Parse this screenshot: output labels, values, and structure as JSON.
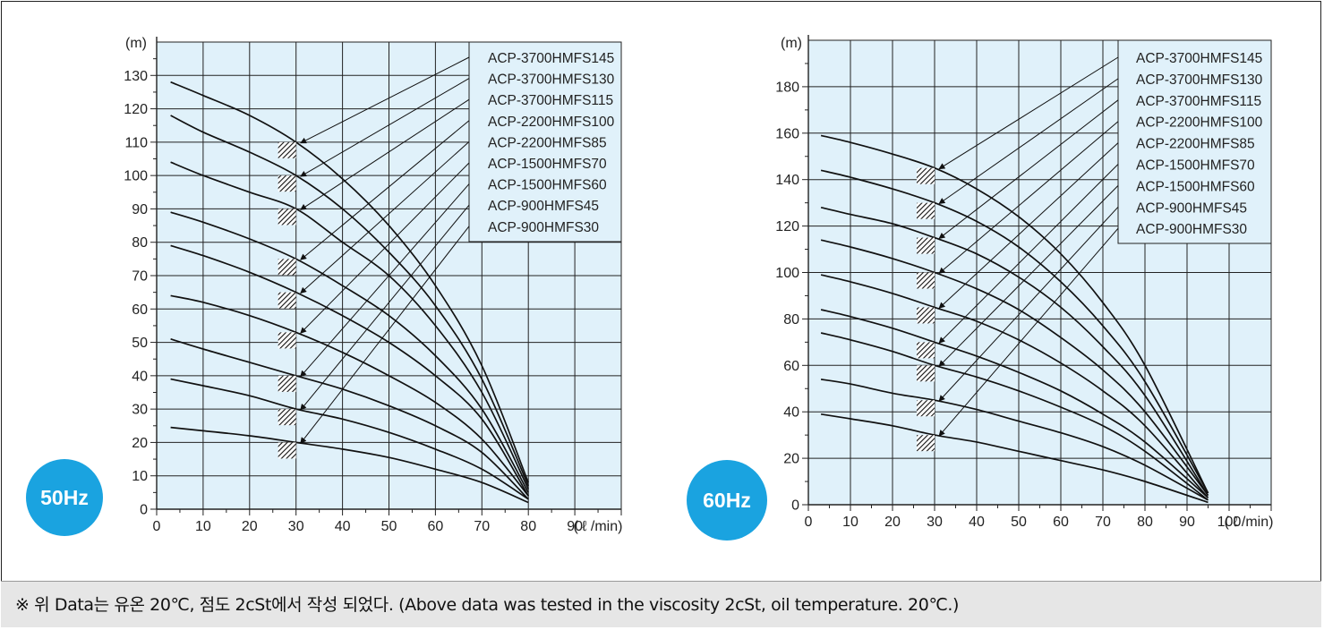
{
  "note": "※ 위 Data는 유온 20℃, 점도 2cSt에서 작성 되었다. (Above data was tested in the viscosity 2cSt, oil temperature. 20℃.)",
  "colors": {
    "plot_bg": "#e0f1fa",
    "badge": "#1aa3e0",
    "grid": "#222222",
    "curve": "#111111"
  },
  "chart_data": [
    {
      "type": "line",
      "badge": "50Hz",
      "ylabel": "(m)",
      "xlabel": "( ℓ /min)",
      "xlim": [
        0,
        100
      ],
      "ylim": [
        0,
        140
      ],
      "x_ticks": [
        "0",
        "10",
        "20",
        "30",
        "40",
        "50",
        "60",
        "70",
        "80",
        "90"
      ],
      "y_ticks": [
        "0",
        "10",
        "20",
        "30",
        "40",
        "50",
        "60",
        "70",
        "80",
        "90",
        "100",
        "110",
        "120",
        "130"
      ],
      "grid": true,
      "legend_placement": "top-right",
      "series": [
        {
          "name": "ACP-3700HMFS145",
          "x": [
            3,
            10,
            20,
            30,
            40,
            50,
            60,
            70,
            80
          ],
          "y": [
            128,
            124,
            118,
            110,
            99,
            85,
            67,
            43,
            8
          ],
          "rated_point": [
            30,
            110
          ]
        },
        {
          "name": "ACP-3700HMFS130",
          "x": [
            3,
            10,
            20,
            30,
            40,
            50,
            60,
            70,
            80
          ],
          "y": [
            118,
            113,
            107,
            100,
            90,
            77,
            61,
            39,
            7
          ],
          "rated_point": [
            30,
            100
          ]
        },
        {
          "name": "ACP-3700HMFS115",
          "x": [
            3,
            10,
            20,
            30,
            40,
            50,
            60,
            70,
            80
          ],
          "y": [
            104,
            100,
            95,
            90,
            80,
            70,
            55,
            35,
            6
          ],
          "rated_point": [
            30,
            90
          ]
        },
        {
          "name": "ACP-2200HMFS100",
          "x": [
            3,
            10,
            20,
            30,
            40,
            50,
            60,
            70,
            80
          ],
          "y": [
            89,
            86,
            81,
            75,
            67,
            58,
            46,
            30,
            5
          ],
          "rated_point": [
            30,
            75
          ]
        },
        {
          "name": "ACP-2200HMFS85",
          "x": [
            3,
            10,
            20,
            30,
            40,
            50,
            60,
            70,
            80
          ],
          "y": [
            79,
            76,
            71,
            65,
            58,
            50,
            40,
            27,
            4
          ],
          "rated_point": [
            30,
            65
          ]
        },
        {
          "name": "ACP-1500HMFS70",
          "x": [
            3,
            10,
            20,
            30,
            40,
            50,
            60,
            70,
            80
          ],
          "y": [
            64,
            62,
            58,
            53,
            47,
            40,
            32,
            21,
            4
          ],
          "rated_point": [
            30,
            53
          ]
        },
        {
          "name": "ACP-1500HMFS60",
          "x": [
            3,
            10,
            20,
            30,
            40,
            50,
            60,
            70,
            80
          ],
          "y": [
            51,
            48,
            44,
            40,
            36,
            31,
            25,
            17,
            3
          ],
          "rated_point": [
            30,
            40
          ]
        },
        {
          "name": "ACP-900HMFS45",
          "x": [
            3,
            10,
            20,
            30,
            40,
            50,
            60,
            70,
            80
          ],
          "y": [
            39,
            37,
            34,
            30,
            27,
            23,
            18,
            12,
            3
          ],
          "rated_point": [
            30,
            30
          ]
        },
        {
          "name": "ACP-900HMFS30",
          "x": [
            3,
            10,
            20,
            30,
            40,
            50,
            60,
            70,
            80
          ],
          "y": [
            24.5,
            23.5,
            22,
            20,
            18,
            15.5,
            12,
            8,
            2
          ],
          "rated_point": [
            30,
            20
          ]
        }
      ]
    },
    {
      "type": "line",
      "badge": "60Hz",
      "ylabel": "(m)",
      "xlabel": "( ℓ /min)",
      "xlim": [
        0,
        110
      ],
      "ylim": [
        0,
        200
      ],
      "x_ticks": [
        "0",
        "10",
        "20",
        "30",
        "40",
        "50",
        "60",
        "70",
        "80",
        "90",
        "100"
      ],
      "y_ticks": [
        "0",
        "20",
        "40",
        "60",
        "80",
        "100",
        "120",
        "140",
        "160",
        "180"
      ],
      "grid": true,
      "legend_placement": "top-right",
      "series": [
        {
          "name": "ACP-3700HMFS145",
          "x": [
            3,
            10,
            20,
            30,
            40,
            50,
            60,
            70,
            80,
            95
          ],
          "y": [
            159,
            156,
            151,
            145,
            136,
            124,
            108,
            87,
            60,
            5
          ],
          "rated_point": [
            30,
            145
          ]
        },
        {
          "name": "ACP-3700HMFS130",
          "x": [
            3,
            10,
            20,
            30,
            40,
            50,
            60,
            70,
            80,
            95
          ],
          "y": [
            144,
            141,
            136,
            130,
            122,
            111,
            96,
            77,
            53,
            5
          ],
          "rated_point": [
            30,
            130
          ]
        },
        {
          "name": "ACP-3700HMFS115",
          "x": [
            3,
            10,
            20,
            30,
            40,
            50,
            60,
            70,
            80,
            95
          ],
          "y": [
            128,
            125,
            121,
            115,
            108,
            98,
            85,
            68,
            47,
            4
          ],
          "rated_point": [
            30,
            115
          ]
        },
        {
          "name": "ACP-2200HMFS100",
          "x": [
            3,
            10,
            20,
            30,
            40,
            50,
            60,
            70,
            80,
            95
          ],
          "y": [
            114,
            111,
            106,
            100,
            93,
            84,
            72,
            58,
            40,
            4
          ],
          "rated_point": [
            30,
            100
          ]
        },
        {
          "name": "ACP-2200HMFS85",
          "x": [
            3,
            10,
            20,
            30,
            40,
            50,
            60,
            70,
            80,
            95
          ],
          "y": [
            99,
            96,
            91,
            85,
            79,
            71,
            61,
            49,
            34,
            3
          ],
          "rated_point": [
            30,
            85
          ]
        },
        {
          "name": "ACP-1500HMFS70",
          "x": [
            3,
            10,
            20,
            30,
            40,
            50,
            60,
            70,
            80,
            95
          ],
          "y": [
            84,
            81,
            76,
            70,
            64,
            57,
            49,
            39,
            27,
            3
          ],
          "rated_point": [
            30,
            70
          ]
        },
        {
          "name": "ACP-1500HMFS60",
          "x": [
            3,
            10,
            20,
            30,
            40,
            50,
            60,
            70,
            80,
            95
          ],
          "y": [
            74,
            71,
            66,
            60,
            55,
            49,
            42,
            34,
            23,
            2
          ],
          "rated_point": [
            30,
            60
          ]
        },
        {
          "name": "ACP-900HMFS45",
          "x": [
            3,
            10,
            20,
            30,
            40,
            50,
            60,
            70,
            80,
            95
          ],
          "y": [
            54,
            52,
            48,
            45,
            41,
            36,
            31,
            25,
            17,
            2
          ],
          "rated_point": [
            30,
            45
          ]
        },
        {
          "name": "ACP-900HMFS30",
          "x": [
            3,
            10,
            20,
            30,
            40,
            50,
            60,
            70,
            80,
            95
          ],
          "y": [
            39,
            37,
            34,
            30,
            27,
            23,
            19,
            15,
            10,
            1
          ],
          "rated_point": [
            30,
            30
          ]
        }
      ]
    }
  ]
}
